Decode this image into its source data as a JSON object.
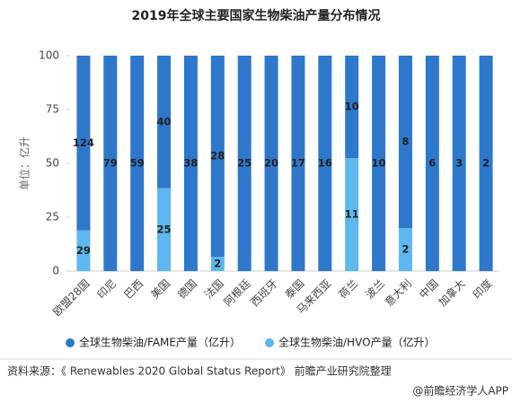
{
  "chart_data": {
    "type": "bar",
    "stacked": true,
    "normalize": true,
    "title": "2019年全球主要国家生物柴油产量分布情况",
    "y_label": "单位：亿升",
    "categories": [
      "欧盟28国",
      "印尼",
      "巴西",
      "美国",
      "德国",
      "法国",
      "阿根廷",
      "西班牙",
      "泰国",
      "马来西亚",
      "荷兰",
      "波兰",
      "意大利",
      "中国",
      "加拿大",
      "印度"
    ],
    "series": [
      {
        "name": "全球生物柴油/FAME产量（亿升）",
        "color": "#2e78cc",
        "values": [
          124,
          79,
          59,
          40,
          38,
          28,
          25,
          20,
          17,
          16,
          10,
          10,
          8,
          6,
          3,
          2
        ]
      },
      {
        "name": "全球生物柴油/HVO产量（亿升）",
        "color": "#5cb8ee",
        "values": [
          29,
          0,
          0,
          25,
          0,
          2,
          0,
          0,
          0,
          0,
          11,
          0,
          2,
          0,
          0,
          0
        ]
      }
    ],
    "ylim": [
      0,
      100
    ],
    "yticks": [
      0,
      25,
      50,
      75,
      100
    ],
    "grid": false,
    "legend": "bottom",
    "source": "资料来源：《 Renewables 2020 Global Status Report》 前瞻产业研究院整理",
    "footer": "@前瞻经济学人APP"
  }
}
